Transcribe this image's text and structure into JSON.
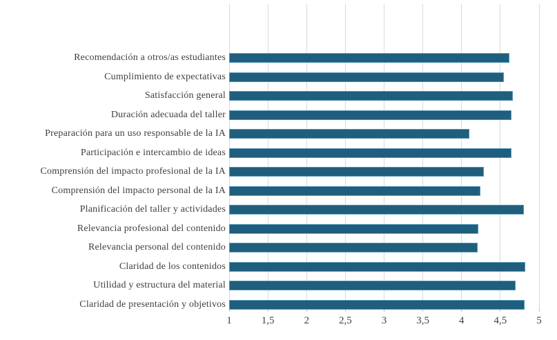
{
  "chart_data": {
    "type": "bar",
    "orientation": "horizontal",
    "title": "",
    "xlabel": "",
    "ylabel": "",
    "categories": [
      "Recomendación a otros/as estudiantes",
      "Cumplimiento de expectativas",
      "Satisfacción general",
      "Duración adecuada del taller",
      "Preparación para un uso responsable de la IA",
      "Participación e intercambio de ideas",
      "Comprensión del impacto profesional de la IA",
      "Comprensión del impacto personal de la IA",
      "Planificación del taller y actividades",
      "Relevancia profesional del contenido",
      "Relevancia personal del contenido",
      "Claridad de los contenidos",
      "Utilidad y estructura del material",
      "Claridad de presentación y objetivos"
    ],
    "values": [
      4.62,
      4.55,
      4.66,
      4.64,
      4.1,
      4.64,
      4.29,
      4.24,
      4.8,
      4.22,
      4.21,
      4.82,
      4.7,
      4.81
    ],
    "xlim": [
      1,
      5
    ],
    "x_ticks": [
      1,
      1.5,
      2,
      2.5,
      3,
      3.5,
      4,
      4.5,
      5
    ],
    "x_tick_labels": [
      "1",
      "1,5",
      "2",
      "2,5",
      "3",
      "3,5",
      "4",
      "4,5",
      "5"
    ],
    "grid": "vertical",
    "legend": "none",
    "colors": {
      "bar_fill": "#1F5E7D",
      "bar_border": "#4D94B5",
      "gridline": "#D9D9D9",
      "tick": "#BFBFBF",
      "text": "#3F3F3F",
      "background": "#FFFFFF"
    }
  }
}
